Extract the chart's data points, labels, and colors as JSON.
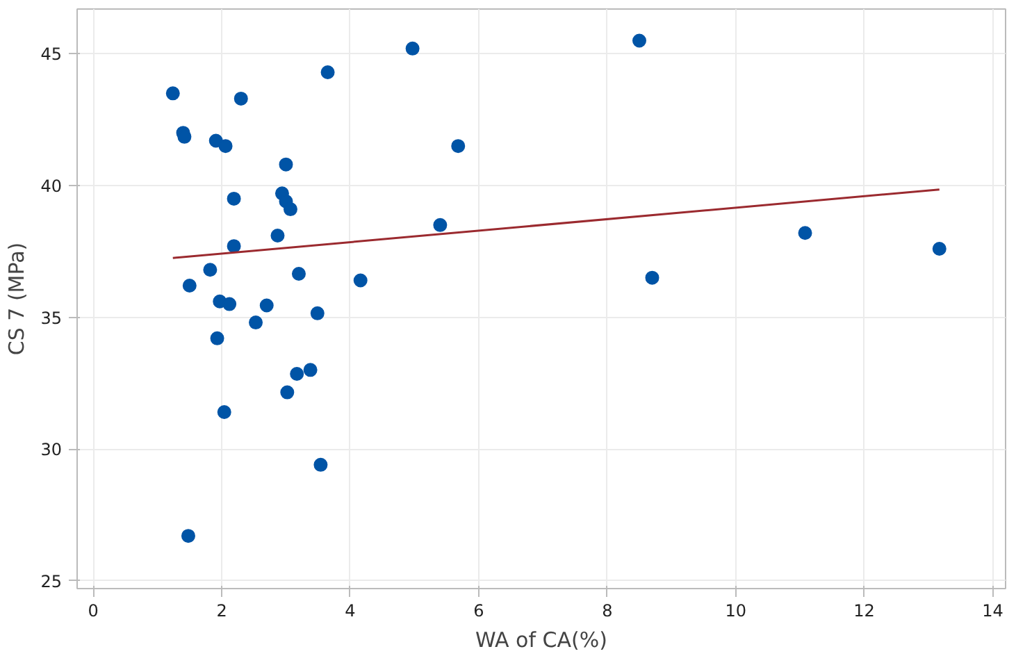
{
  "chart_data": {
    "type": "scatter",
    "xlabel": "WA of CA(%)",
    "ylabel": "CS 7 (MPa)",
    "xlim": [
      -0.25,
      14.2
    ],
    "ylim": [
      24.7,
      46.7
    ],
    "xticks": [
      0,
      2,
      4,
      6,
      8,
      10,
      12,
      14
    ],
    "yticks": [
      25,
      30,
      35,
      40,
      45
    ],
    "grid": true,
    "series": [
      {
        "marker": "circle",
        "color": "#0054a6",
        "x": [
          1.24,
          1.4,
          1.42,
          1.91,
          2.06,
          2.3,
          3.65,
          4.97,
          8.5,
          5.68,
          3.0,
          2.19,
          2.94,
          3.0,
          3.07,
          2.87,
          2.19,
          5.4,
          11.08,
          13.17,
          1.82,
          1.5,
          3.2,
          4.16,
          8.7,
          1.97,
          2.12,
          2.7,
          3.49,
          2.53,
          1.93,
          3.17,
          3.38,
          3.02,
          2.04,
          3.54,
          1.48
        ],
        "values": [
          43.5,
          42.0,
          41.85,
          41.7,
          41.5,
          43.3,
          44.3,
          45.2,
          45.5,
          41.5,
          40.8,
          39.5,
          39.7,
          39.4,
          39.1,
          38.1,
          37.7,
          38.5,
          38.2,
          37.6,
          36.8,
          36.2,
          36.65,
          36.4,
          36.5,
          35.6,
          35.5,
          35.45,
          35.15,
          34.8,
          34.2,
          32.85,
          33.0,
          32.15,
          31.4,
          29.4,
          26.7
        ]
      },
      {
        "type": "line",
        "color": "#9b2a2f",
        "x": [
          1.24,
          13.17
        ],
        "values": [
          37.25,
          39.85
        ]
      }
    ]
  }
}
